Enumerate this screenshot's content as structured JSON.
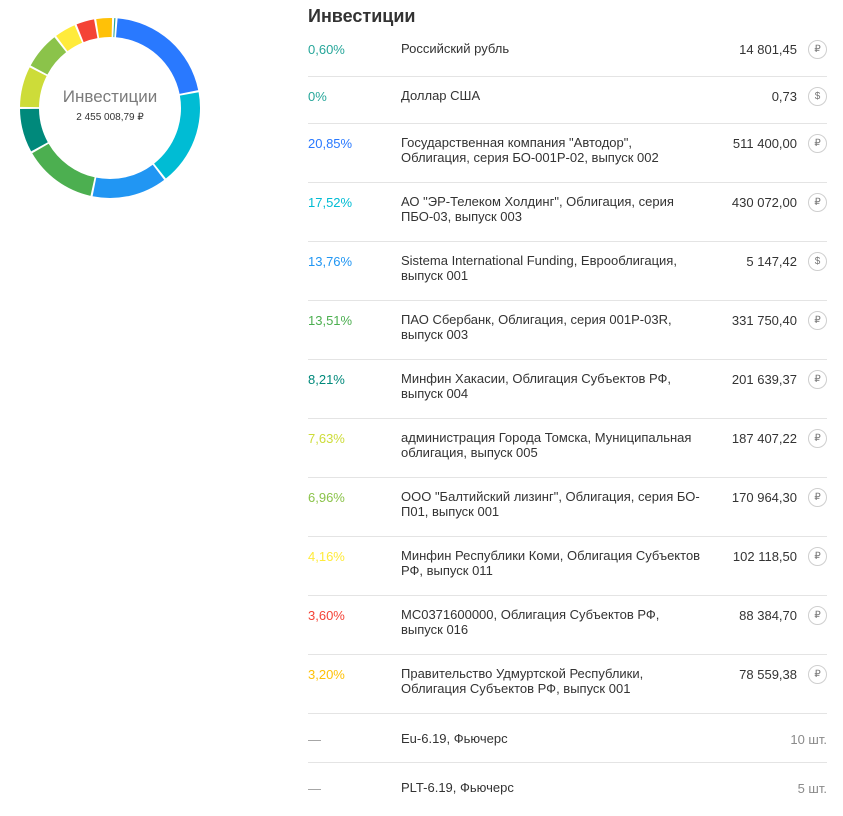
{
  "donut": {
    "title": "Инвестиции",
    "total": "2 455 008,79 ₽"
  },
  "panel": {
    "title": "Инвестиции"
  },
  "items": [
    {
      "percent": "0,60%",
      "name": "Российский рубль",
      "amount": "14 801,45",
      "currency_icon": "ruble-icon",
      "currency_symbol": "₽",
      "color": "#26a69a",
      "share": 0.6
    },
    {
      "percent": "0%",
      "name": "Доллар США",
      "amount": "0,73",
      "currency_icon": "dollar-icon",
      "currency_symbol": "$",
      "color": "#26a69a",
      "share": 0.0
    },
    {
      "percent": "20,85%",
      "name": "Государственная компания \"Автодор\", Облигация, серия БО-001Р-02, выпуск 002",
      "amount": "511 400,00",
      "currency_icon": "ruble-icon",
      "currency_symbol": "₽",
      "color": "#2979ff",
      "share": 20.85
    },
    {
      "percent": "17,52%",
      "name": "АО \"ЭР-Телеком Холдинг\", Облигация, серия ПБО-03, выпуск 003",
      "amount": "430 072,00",
      "currency_icon": "ruble-icon",
      "currency_symbol": "₽",
      "color": "#00bcd4",
      "share": 17.52
    },
    {
      "percent": "13,76%",
      "name": "Sistema International Funding, Еврооблигация, выпуск 001",
      "amount": "5 147,42",
      "currency_icon": "dollar-icon",
      "currency_symbol": "$",
      "color": "#2196f3",
      "share": 13.76
    },
    {
      "percent": "13,51%",
      "name": "ПАО Сбербанк, Облигация, серия 001Р-03R, выпуск 003",
      "amount": "331 750,40",
      "currency_icon": "ruble-icon",
      "currency_symbol": "₽",
      "color": "#4caf50",
      "share": 13.51
    },
    {
      "percent": "8,21%",
      "name": "Минфин Хакасии, Облигация Субъектов РФ, выпуск 004",
      "amount": "201 639,37",
      "currency_icon": "ruble-icon",
      "currency_symbol": "₽",
      "color": "#00897b",
      "share": 8.21
    },
    {
      "percent": "7,63%",
      "name": "администрация Города Томска, Муниципальная облигация, выпуск 005",
      "amount": "187 407,22",
      "currency_icon": "ruble-icon",
      "currency_symbol": "₽",
      "color": "#cddc39",
      "share": 7.63
    },
    {
      "percent": "6,96%",
      "name": "ООО \"Балтийский лизинг\", Облигация, серия БО-П01, выпуск 001",
      "amount": "170 964,30",
      "currency_icon": "ruble-icon",
      "currency_symbol": "₽",
      "color": "#8bc34a",
      "share": 6.96
    },
    {
      "percent": "4,16%",
      "name": "Минфин Республики Коми, Облигация Субъектов РФ, выпуск 011",
      "amount": "102 118,50",
      "currency_icon": "ruble-icon",
      "currency_symbol": "₽",
      "color": "#ffeb3b",
      "share": 4.16
    },
    {
      "percent": "3,60%",
      "name": "МС0371600000, Облигация Субъектов РФ, выпуск 016",
      "amount": "88 384,70",
      "currency_icon": "ruble-icon",
      "currency_symbol": "₽",
      "color": "#f44336",
      "share": 3.6
    },
    {
      "percent": "3,20%",
      "name": "Правительство Удмуртской Республики, Облигация Субъектов РФ, выпуск 001",
      "amount": "78 559,38",
      "currency_icon": "ruble-icon",
      "currency_symbol": "₽",
      "color": "#ffc107",
      "share": 3.2
    }
  ],
  "futures": [
    {
      "percent": "—",
      "name": "Eu-6.19, Фьючерс",
      "quantity": "10 шт."
    },
    {
      "percent": "—",
      "name": "PLT-6.19, Фьючерс",
      "quantity": "5 шт."
    }
  ]
}
